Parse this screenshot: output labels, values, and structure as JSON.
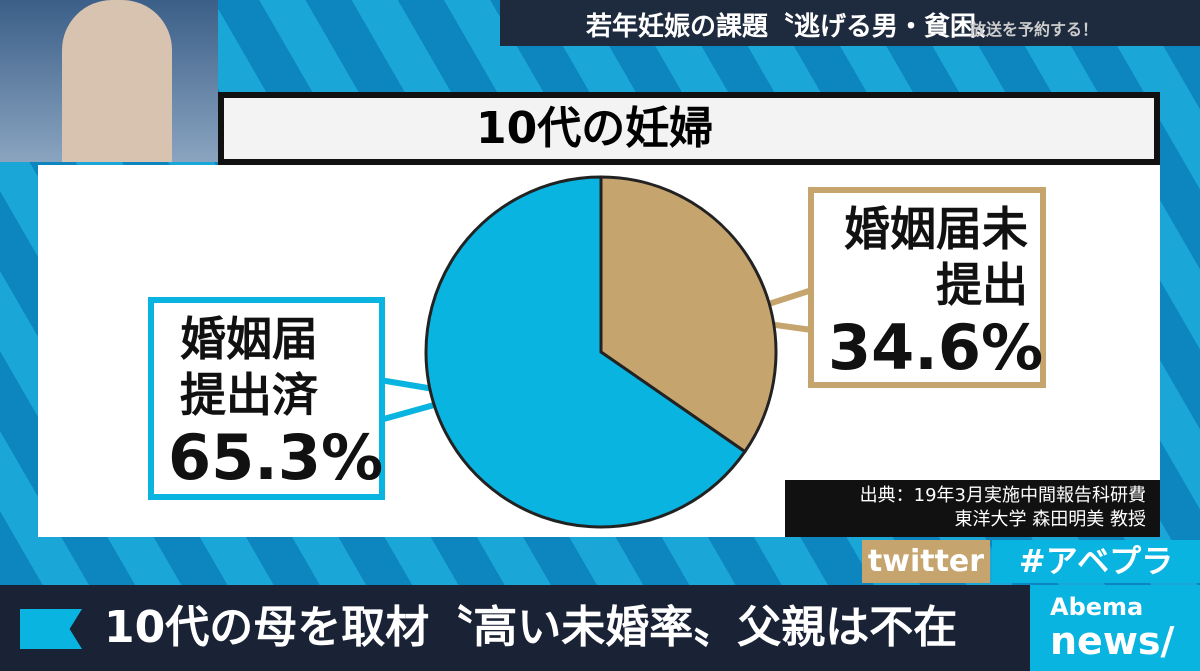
{
  "header": {
    "topic": "若年妊娠の課題〝逃げる男・貧困〟",
    "overlay": "放送を予約する！"
  },
  "chart_data": {
    "type": "pie",
    "title": "10代の妊婦",
    "categories": [
      "婚姻届提出済",
      "婚姻届未提出"
    ],
    "values": [
      65.3,
      34.6
    ],
    "value_labels": [
      "65.3%",
      "34.6%"
    ],
    "colors": [
      "#0ab4e0",
      "#c6a46e"
    ],
    "source": [
      "出典：19年3月実施中間報告科研費",
      "東洋大学 森田明美 教授"
    ]
  },
  "tags": {
    "twitter": "twitter",
    "hashtag": "#アベプラ"
  },
  "footer": {
    "headline": "10代の母を取材〝高い未婚率〟父親は不在",
    "logo_top": "Abema",
    "logo_bottom": "news/"
  }
}
